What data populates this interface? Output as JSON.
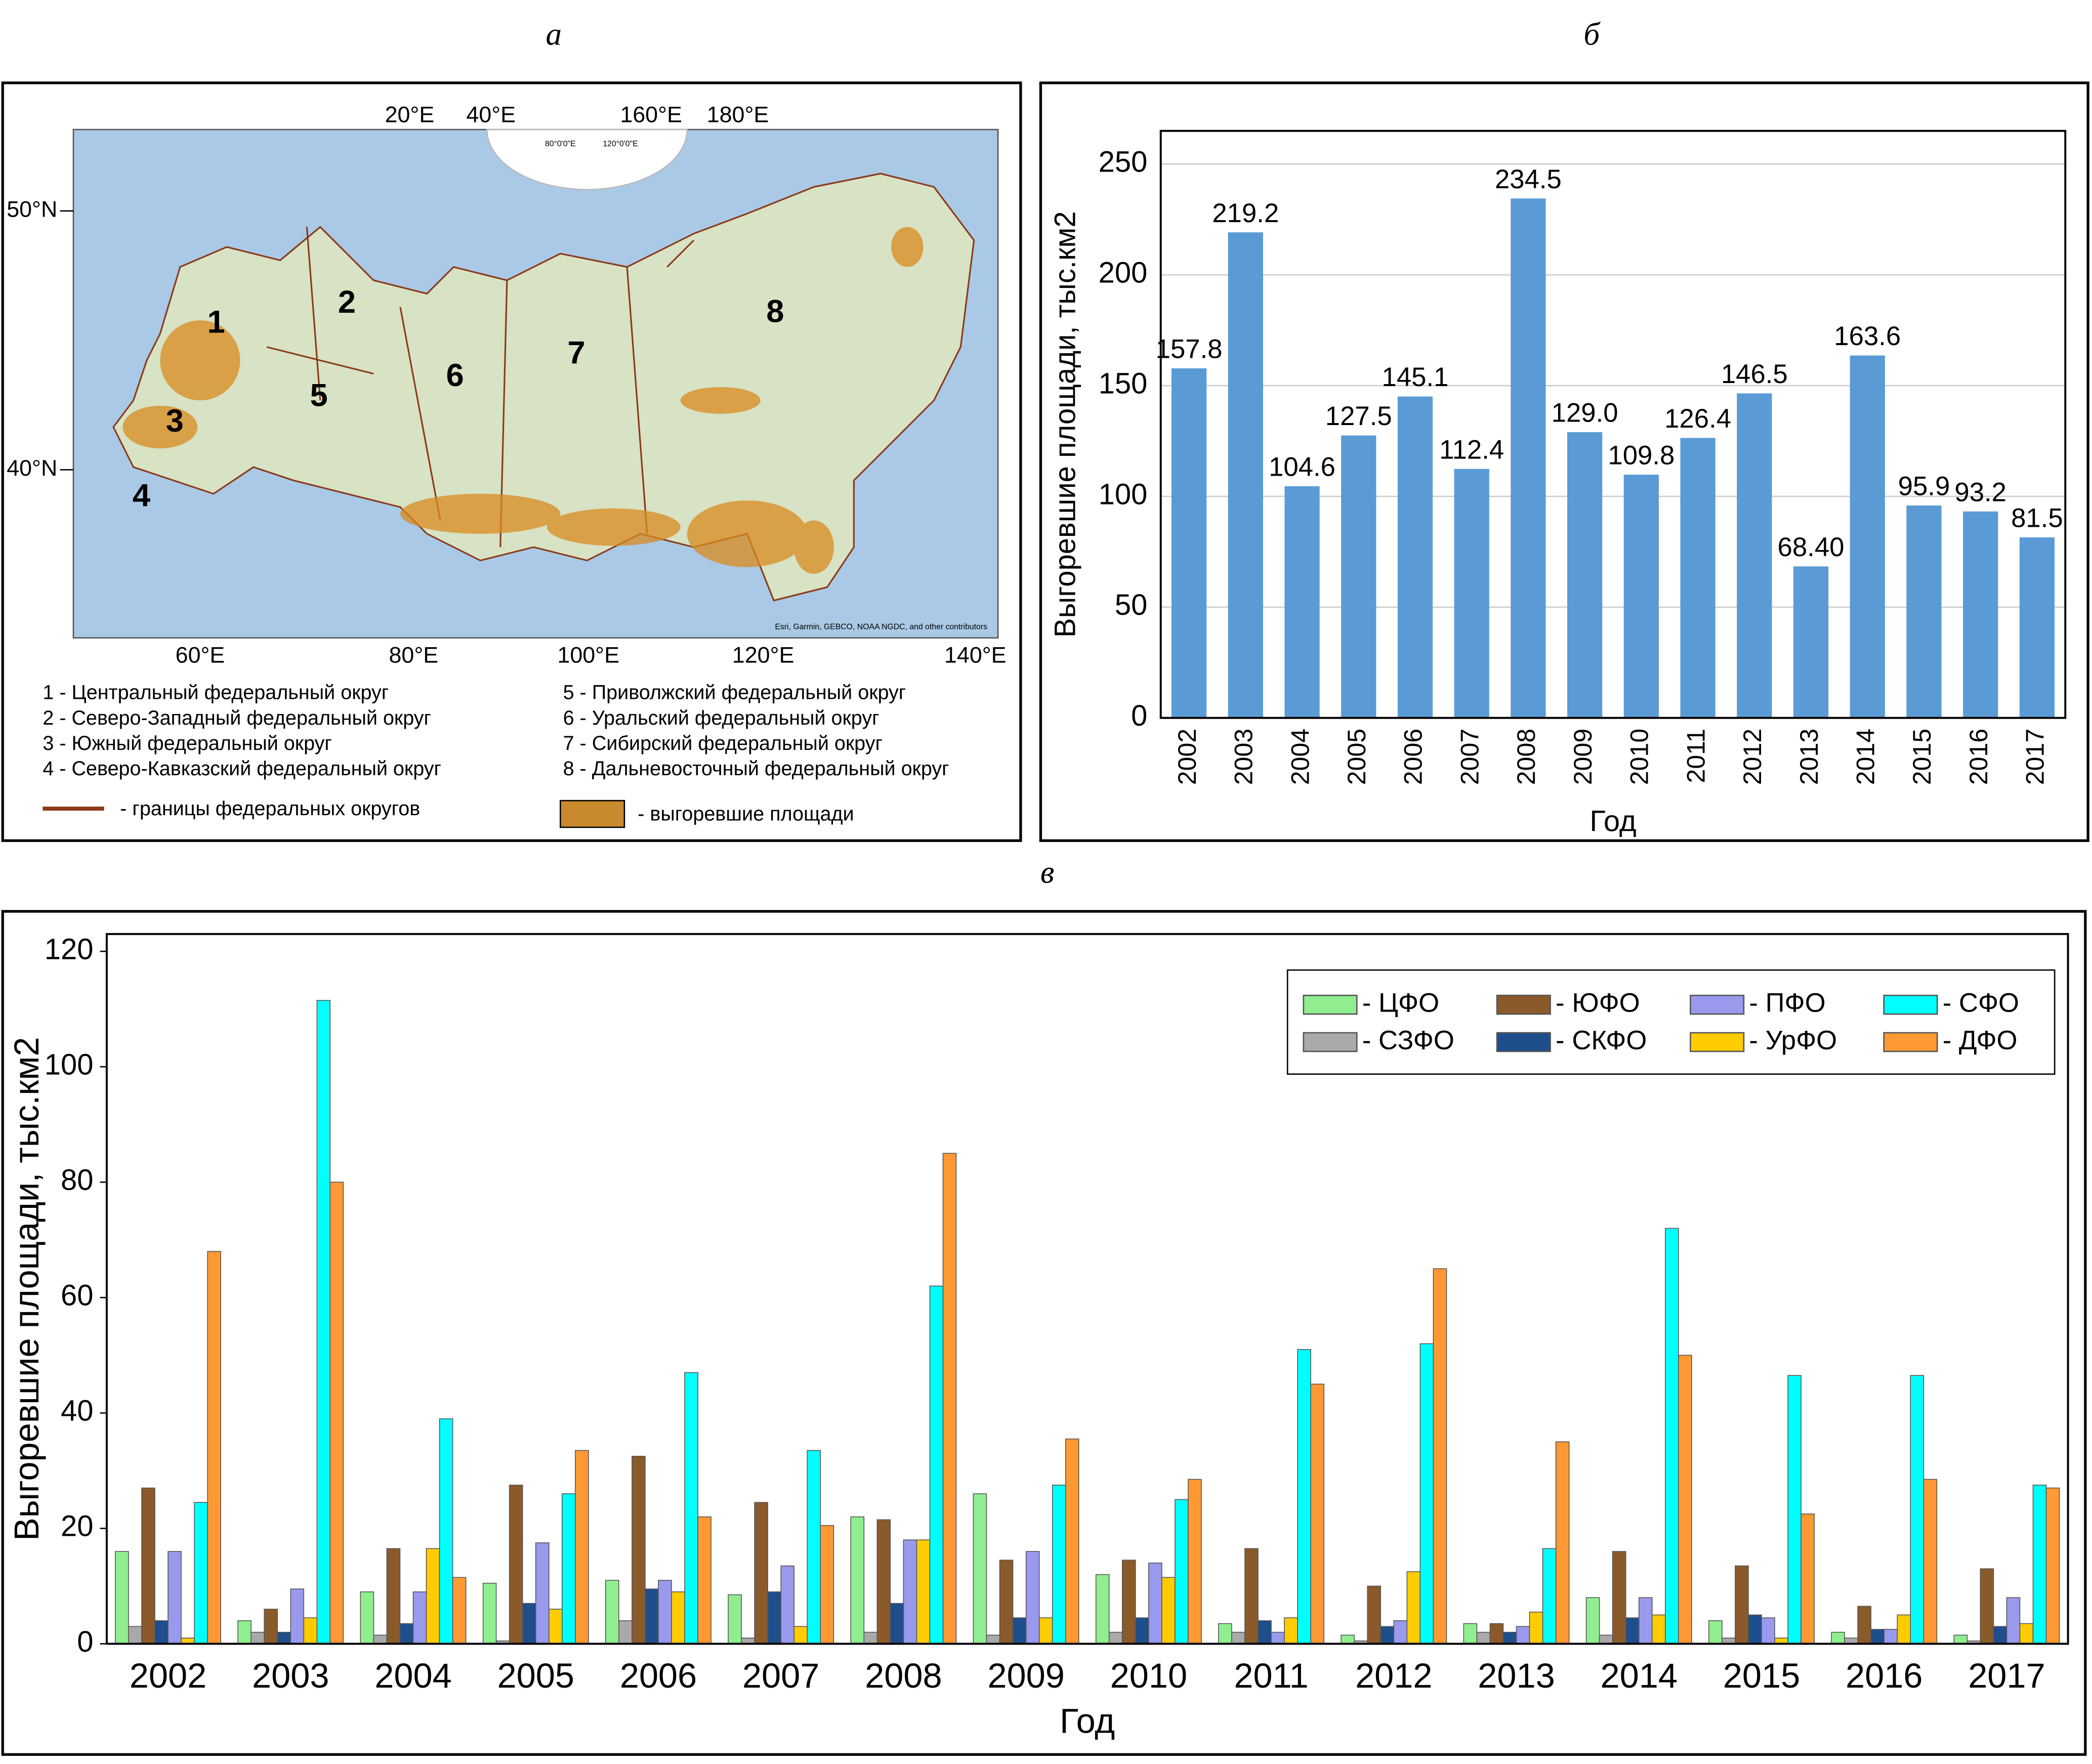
{
  "panel_labels": [
    "а",
    "б",
    "в"
  ],
  "map": {
    "top_longitudes": [
      "20°E",
      "40°E",
      "160°E",
      "180°E"
    ],
    "inset_labels": [
      "80°0'0\"E",
      "120°0'0\"E"
    ],
    "latitudes": [
      "50°N",
      "40°N"
    ],
    "bottom_longitudes": [
      "60°E",
      "80°E",
      "100°E",
      "120°E",
      "140°E"
    ],
    "region_numbers": [
      "1",
      "2",
      "3",
      "4",
      "5",
      "6",
      "7",
      "8"
    ],
    "region_legend": [
      "1 - Центральный федеральный округ",
      "2 - Северо-Западный федеральный округ",
      "3 - Южный федеральный округ",
      "4 - Северо-Кавказский федеральный округ",
      "5 - Приволжский федеральный округ",
      "6 - Уральский федеральный округ",
      "7 - Сибирский федеральный округ",
      "8 - Дальневосточный федеральный округ"
    ],
    "boundary_legend": "- границы федеральных округов",
    "burnt_legend": "- выгоревшие площади",
    "attribution": "Esri, Garmin, GEBCO, NOAA NGDC, and other contributors"
  },
  "chart_data": [
    {
      "type": "bar",
      "color": "#5b9bd5",
      "grid": true,
      "y_label": "Выгоревшие площади, тыс.км2",
      "x_label": "Год",
      "categories": [
        "2002",
        "2003",
        "2004",
        "2005",
        "2006",
        "2007",
        "2008",
        "2009",
        "2010",
        "2011",
        "2012",
        "2013",
        "2014",
        "2015",
        "2016",
        "2017"
      ],
      "values": [
        157.8,
        219.2,
        104.6,
        127.5,
        145.1,
        112.4,
        234.5,
        129.0,
        109.8,
        126.4,
        146.5,
        68.4,
        163.6,
        95.9,
        93.2,
        81.5
      ],
      "value_labels": [
        "157.8",
        "219.2",
        "104.6",
        "127.5",
        "145.1",
        "112.4",
        "234.5",
        "129.0",
        "109.8",
        "126.4",
        "146.5",
        "68.40",
        "163.6",
        "95.9",
        "93.2",
        "81.5"
      ],
      "ylim": [
        0,
        265
      ],
      "yticks": [
        0,
        50,
        100,
        150,
        200,
        250
      ]
    },
    {
      "type": "bar",
      "grid": false,
      "y_label": "Выгоревшие площади, тыс.км2",
      "x_label": "Год",
      "categories": [
        "2002",
        "2003",
        "2004",
        "2005",
        "2006",
        "2007",
        "2008",
        "2009",
        "2010",
        "2011",
        "2012",
        "2013",
        "2014",
        "2015",
        "2016",
        "2017"
      ],
      "ylim": [
        0,
        123
      ],
      "yticks": [
        0,
        20,
        40,
        60,
        80,
        100,
        120
      ],
      "series": [
        {
          "name": "- ЦФО",
          "color": "#90ee90",
          "values": [
            16,
            4,
            9,
            10.5,
            11,
            8.5,
            22,
            26,
            12,
            3.5,
            1.5,
            3.5,
            8,
            4,
            2,
            1.5
          ]
        },
        {
          "name": "- СЗФО",
          "color": "#a9a9a9",
          "values": [
            3,
            2,
            1.5,
            0.5,
            4,
            1,
            2,
            1.5,
            2,
            2,
            0.5,
            2,
            1.5,
            1,
            1,
            0.5
          ]
        },
        {
          "name": "- ЮФО",
          "color": "#8b5a2b",
          "values": [
            27,
            6,
            16.5,
            27.5,
            32.5,
            24.5,
            21.5,
            14.5,
            14.5,
            16.5,
            10,
            3.5,
            16,
            13.5,
            6.5,
            13
          ]
        },
        {
          "name": "- СКФО",
          "color": "#1f4e8c",
          "values": [
            4,
            2,
            3.5,
            7,
            9.5,
            9,
            7,
            4.5,
            4.5,
            4,
            3,
            2,
            4.5,
            5,
            2.5,
            3
          ]
        },
        {
          "name": "- ПФО",
          "color": "#9999ee",
          "values": [
            16,
            9.5,
            9,
            17.5,
            11,
            13.5,
            18,
            16,
            14,
            2,
            4,
            3,
            8,
            4.5,
            2.5,
            8
          ]
        },
        {
          "name": "- УрФО",
          "color": "#ffcc00",
          "values": [
            1,
            4.5,
            16.5,
            6,
            9,
            3,
            18,
            4.5,
            11.5,
            4.5,
            12.5,
            5.5,
            5,
            1,
            5,
            3.5
          ]
        },
        {
          "name": "- СФО",
          "color": "#00ffff",
          "values": [
            24.5,
            111.5,
            39,
            26,
            47,
            33.5,
            62,
            27.5,
            25,
            51,
            52,
            16.5,
            72,
            46.5,
            46.5,
            27.5
          ]
        },
        {
          "name": "- ДФО",
          "color": "#ff9933",
          "values": [
            68,
            80,
            11.5,
            33.5,
            22,
            20.5,
            85,
            35.5,
            28.5,
            45,
            65,
            35,
            50,
            22.5,
            28.5,
            27
          ]
        }
      ]
    }
  ]
}
